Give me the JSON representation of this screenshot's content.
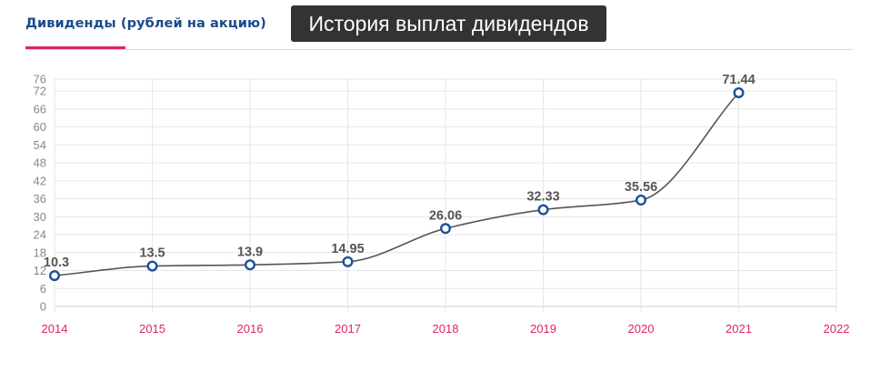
{
  "header": {
    "tab_label": "Дивиденды (рублей на акцию)",
    "tooltip": "История выплат дивидендов"
  },
  "chart_data": {
    "type": "line",
    "title": "",
    "xlabel": "",
    "ylabel": "",
    "x": [
      2014,
      2015,
      2016,
      2017,
      2018,
      2019,
      2020,
      2021
    ],
    "x_ticks": [
      "2014",
      "2015",
      "2016",
      "2017",
      "2018",
      "2019",
      "2020",
      "2021",
      "2022"
    ],
    "xlim": [
      2014,
      2022
    ],
    "series": [
      {
        "values": [
          10.3,
          13.5,
          13.9,
          14.95,
          26.06,
          32.33,
          35.56,
          71.44
        ]
      }
    ],
    "data_labels": [
      "10.3",
      "13.5",
      "13.9",
      "14.95",
      "26.06",
      "32.33",
      "35.56",
      "71.44"
    ],
    "y_ticks": [
      0,
      6,
      12,
      18,
      24,
      30,
      36,
      42,
      48,
      54,
      60,
      66,
      72,
      76
    ],
    "ylim": [
      0,
      76
    ],
    "grid": true,
    "colors": {
      "line": "#555555",
      "marker_stroke": "#1b4f9b",
      "x_labels": "#e0245e",
      "y_labels": "#888888",
      "grid": "#e6e6e6"
    }
  }
}
